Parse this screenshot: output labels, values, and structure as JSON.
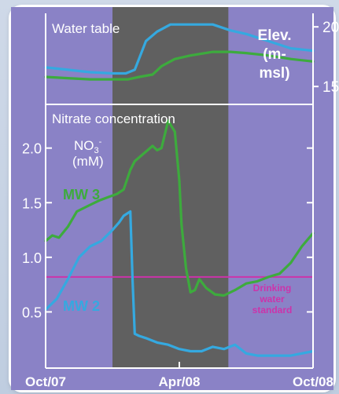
{
  "colors": {
    "background": "#8a82c6",
    "shade": "#606060",
    "frame": "#ffffff",
    "mw3": "#3dab3d",
    "mw2": "#35a9e0",
    "standard": "#cc33aa"
  },
  "chart_data": [
    {
      "type": "line",
      "title": "Water table",
      "ylabel": "Elev.\n(m-\nmsl)",
      "ylabel_lines": [
        "Elev.",
        "(m-",
        "msl)"
      ],
      "y_ticks": [
        "20",
        "15"
      ],
      "y_tick_values": [
        20,
        15
      ],
      "ylim": [
        13.5,
        21
      ],
      "x_ticks": [
        "Oct/07",
        "Apr/08",
        "Oct/08"
      ],
      "xlim_months": [
        0,
        12
      ],
      "shaded_period_months": [
        3.0,
        8.2
      ],
      "series": [
        {
          "key": "mw2",
          "x": [
            0,
            1,
            2,
            3,
            3.6,
            4.0,
            4.5,
            5.0,
            5.6,
            6.5,
            7.5,
            8.3,
            9,
            10,
            11,
            12
          ],
          "y": [
            16.6,
            16.4,
            16.2,
            16.1,
            16.1,
            16.4,
            18.8,
            19.6,
            20.2,
            20.2,
            20.2,
            19.7,
            19.4,
            18.8,
            18.2,
            18.0
          ]
        },
        {
          "key": "mw3",
          "x": [
            0,
            1,
            2,
            3,
            3.7,
            4.2,
            4.8,
            5.2,
            5.8,
            6.5,
            7.5,
            8.3,
            9,
            10,
            11,
            12
          ],
          "y": [
            15.8,
            15.7,
            15.6,
            15.6,
            15.6,
            15.8,
            16.0,
            16.7,
            17.3,
            17.6,
            17.9,
            17.9,
            17.8,
            17.6,
            17.3,
            17.1
          ]
        }
      ]
    },
    {
      "type": "line",
      "title": "Nitrate concentration",
      "ylabel": "NO3- (mM)",
      "ylabel_main": "NO",
      "ylabel_sub": "3",
      "ylabel_sup": "-",
      "ylabel_unit": "(mM)",
      "y_ticks": [
        "2.0",
        "1.5",
        "1.0",
        "0.5"
      ],
      "y_tick_values": [
        2.0,
        1.5,
        1.0,
        0.5
      ],
      "ylim": [
        0.0,
        2.4
      ],
      "x_ticks": [
        "Oct/07",
        "Apr/08",
        "Oct/08"
      ],
      "x_tick_months": [
        0,
        6,
        12
      ],
      "xlim_months": [
        0,
        12
      ],
      "shaded_period_months": [
        3.0,
        8.2
      ],
      "standard": {
        "value": 0.82,
        "label_lines": [
          "Drinking",
          "water",
          "standard"
        ]
      },
      "series": [
        {
          "key": "mw3",
          "name": "MW 3",
          "x": [
            0,
            0.3,
            0.6,
            1.0,
            1.4,
            2.0,
            2.4,
            2.8,
            3.2,
            3.5,
            3.8,
            4.0,
            4.4,
            4.8,
            5.0,
            5.2,
            5.5,
            5.8,
            6.0,
            6.1,
            6.3,
            6.5,
            6.7,
            6.9,
            7.2,
            7.6,
            8.0,
            8.5,
            9.0,
            9.5,
            10.0,
            10.5,
            11.0,
            11.5,
            12.0
          ],
          "y": [
            1.15,
            1.2,
            1.18,
            1.28,
            1.42,
            1.48,
            1.52,
            1.55,
            1.58,
            1.62,
            1.8,
            1.88,
            1.95,
            2.02,
            1.98,
            2.0,
            2.25,
            2.15,
            1.7,
            1.3,
            0.9,
            0.68,
            0.7,
            0.8,
            0.72,
            0.66,
            0.65,
            0.7,
            0.76,
            0.78,
            0.82,
            0.85,
            0.95,
            1.1,
            1.22
          ]
        },
        {
          "key": "mw2",
          "name": "MW 2",
          "x": [
            0,
            0.5,
            1.0,
            1.5,
            2.0,
            2.5,
            3.0,
            3.3,
            3.5,
            3.8,
            3.9,
            4.0,
            4.2,
            4.5,
            5.0,
            5.5,
            6.0,
            6.5,
            7.0,
            7.5,
            8.0,
            8.5,
            9.0,
            9.5,
            10.0,
            10.5,
            11.0,
            11.5,
            12.0
          ],
          "y": [
            0.52,
            0.62,
            0.8,
            1.0,
            1.1,
            1.15,
            1.25,
            1.32,
            1.38,
            1.42,
            0.8,
            0.3,
            0.28,
            0.26,
            0.22,
            0.2,
            0.16,
            0.14,
            0.14,
            0.18,
            0.16,
            0.2,
            0.12,
            0.1,
            0.1,
            0.1,
            0.1,
            0.12,
            0.14
          ]
        }
      ]
    }
  ]
}
